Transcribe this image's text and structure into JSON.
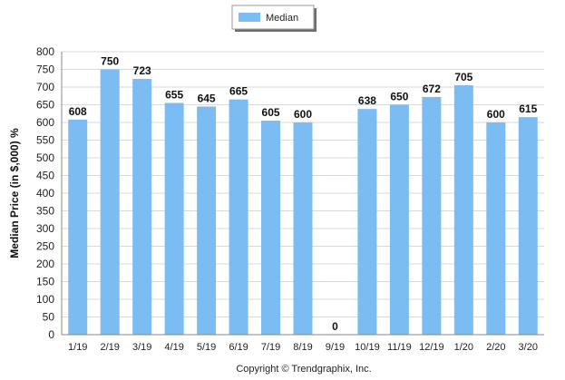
{
  "chart_data": {
    "type": "bar",
    "categories": [
      "1/19",
      "2/19",
      "3/19",
      "4/19",
      "5/19",
      "6/19",
      "7/19",
      "8/19",
      "9/19",
      "10/19",
      "11/19",
      "12/19",
      "1/20",
      "2/20",
      "3/20"
    ],
    "series": [
      {
        "name": "Median",
        "values": [
          608,
          750,
          723,
          655,
          645,
          665,
          605,
          600,
          0,
          638,
          650,
          672,
          705,
          600,
          615
        ]
      }
    ],
    "data_labels": [
      "608",
      "750",
      "723",
      "655",
      "645",
      "665",
      "605",
      "600",
      "0",
      "638",
      "650",
      "672",
      "705",
      "600",
      "615"
    ],
    "ylabel": "Median Price (in $,000) %",
    "xlabel": "",
    "ylim": [
      0,
      800
    ],
    "yticks": [
      0,
      50,
      100,
      150,
      200,
      250,
      300,
      350,
      400,
      450,
      500,
      550,
      600,
      650,
      700,
      750,
      800
    ],
    "grid": true,
    "legend_position": "top-center",
    "bar_color": "#7BBCF2",
    "grid_color": "#D9D9D9"
  },
  "footer": {
    "copyright": "Copyright © Trendgraphix, Inc."
  }
}
